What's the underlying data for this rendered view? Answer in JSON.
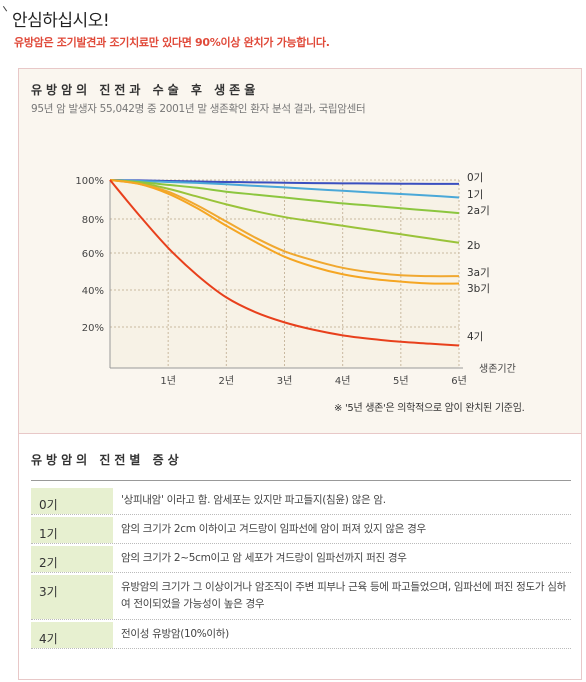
{
  "header": {
    "title": "안심하십시오!",
    "subtitle": "유방암은 조기발견과 조기치료만 있다면 90%이상 완치가 가능합니다."
  },
  "survival": {
    "title": "유방암의 진전과 수술 후 생존율",
    "note": "95년 암 발생자 55,042명 중 2001년 말 생존확인 환자 분석 결과, 국립암센터",
    "footnote": "※ '5년 생존'은 의학적으로 암이 완치된 기준임."
  },
  "chart_data": {
    "type": "line",
    "xlabel": "생존기간",
    "x": [
      0,
      0.5,
      1,
      1.5,
      2,
      2.5,
      3,
      3.5,
      4,
      4.5,
      5,
      5.5,
      6
    ],
    "x_tick_labels": [
      "1년",
      "2년",
      "3년",
      "4년",
      "5년",
      "6년"
    ],
    "y_tick_labels": [
      "100%",
      "80%",
      "60%",
      "40%",
      "20%"
    ],
    "series": [
      {
        "name": "0기",
        "color": "#3a4fbf",
        "values": [
          100,
          99.8,
          99.5,
          99.2,
          99,
          98.8,
          98.6,
          98.4,
          98.3,
          98.2,
          98.1,
          98,
          98
        ]
      },
      {
        "name": "1기",
        "color": "#4aa8d8",
        "values": [
          100,
          99.5,
          99,
          98.5,
          97.8,
          97,
          96.2,
          95.3,
          94.5,
          93.6,
          92.8,
          92,
          91
        ]
      },
      {
        "name": "2a기",
        "color": "#8cc63f",
        "values": [
          100,
          99,
          97.5,
          96,
          94,
          92.5,
          91,
          89.5,
          88,
          86.8,
          85.5,
          84.3,
          83
        ]
      },
      {
        "name": "2b",
        "color": "#9ac33a",
        "values": [
          100,
          98.5,
          95.5,
          91.5,
          87.5,
          84,
          81,
          78.5,
          76,
          73.5,
          71,
          68.5,
          66
        ]
      },
      {
        "name": "3a기",
        "color": "#f0a830",
        "values": [
          100,
          98,
          94,
          87,
          78.5,
          69,
          61,
          56,
          52,
          49.5,
          48,
          47.5,
          47.5
        ]
      },
      {
        "name": "3b기",
        "color": "#f5a623",
        "values": [
          100,
          98,
          93,
          85.5,
          76,
          66.5,
          58,
          52.5,
          48.5,
          46,
          44.5,
          43.5,
          43.5
        ]
      },
      {
        "name": "4기",
        "color": "#e8401c",
        "values": [
          100,
          82,
          63,
          48,
          36,
          28,
          22.5,
          18.5,
          15.5,
          13.5,
          12,
          11,
          10
        ]
      }
    ]
  },
  "stages": {
    "title": "유방암의 진전별 증상",
    "rows": [
      {
        "stage": "0기",
        "desc": "'상피내암' 이라고 함. 암세포는 있지만 파고들지(침윤) 않은 암."
      },
      {
        "stage": "1기",
        "desc": "암의 크기가 2cm 이하이고 겨드랑이 임파선에 암이 퍼져 있지 않은 경우"
      },
      {
        "stage": "2기",
        "desc": "암의 크기가 2~5cm이고 암 세포가 겨드랑이 임파선까지 퍼진 경우"
      },
      {
        "stage": "3기",
        "desc": "유방암의 크기가 그 이상이거나 암조직이 주변 피부나 근육 등에 파고들었으며, 임파선에 퍼진 정도가 심하여 전이되었을 가능성이 높은 경우"
      },
      {
        "stage": "4기",
        "desc": "전이성 유방암(10%이하)"
      }
    ]
  }
}
